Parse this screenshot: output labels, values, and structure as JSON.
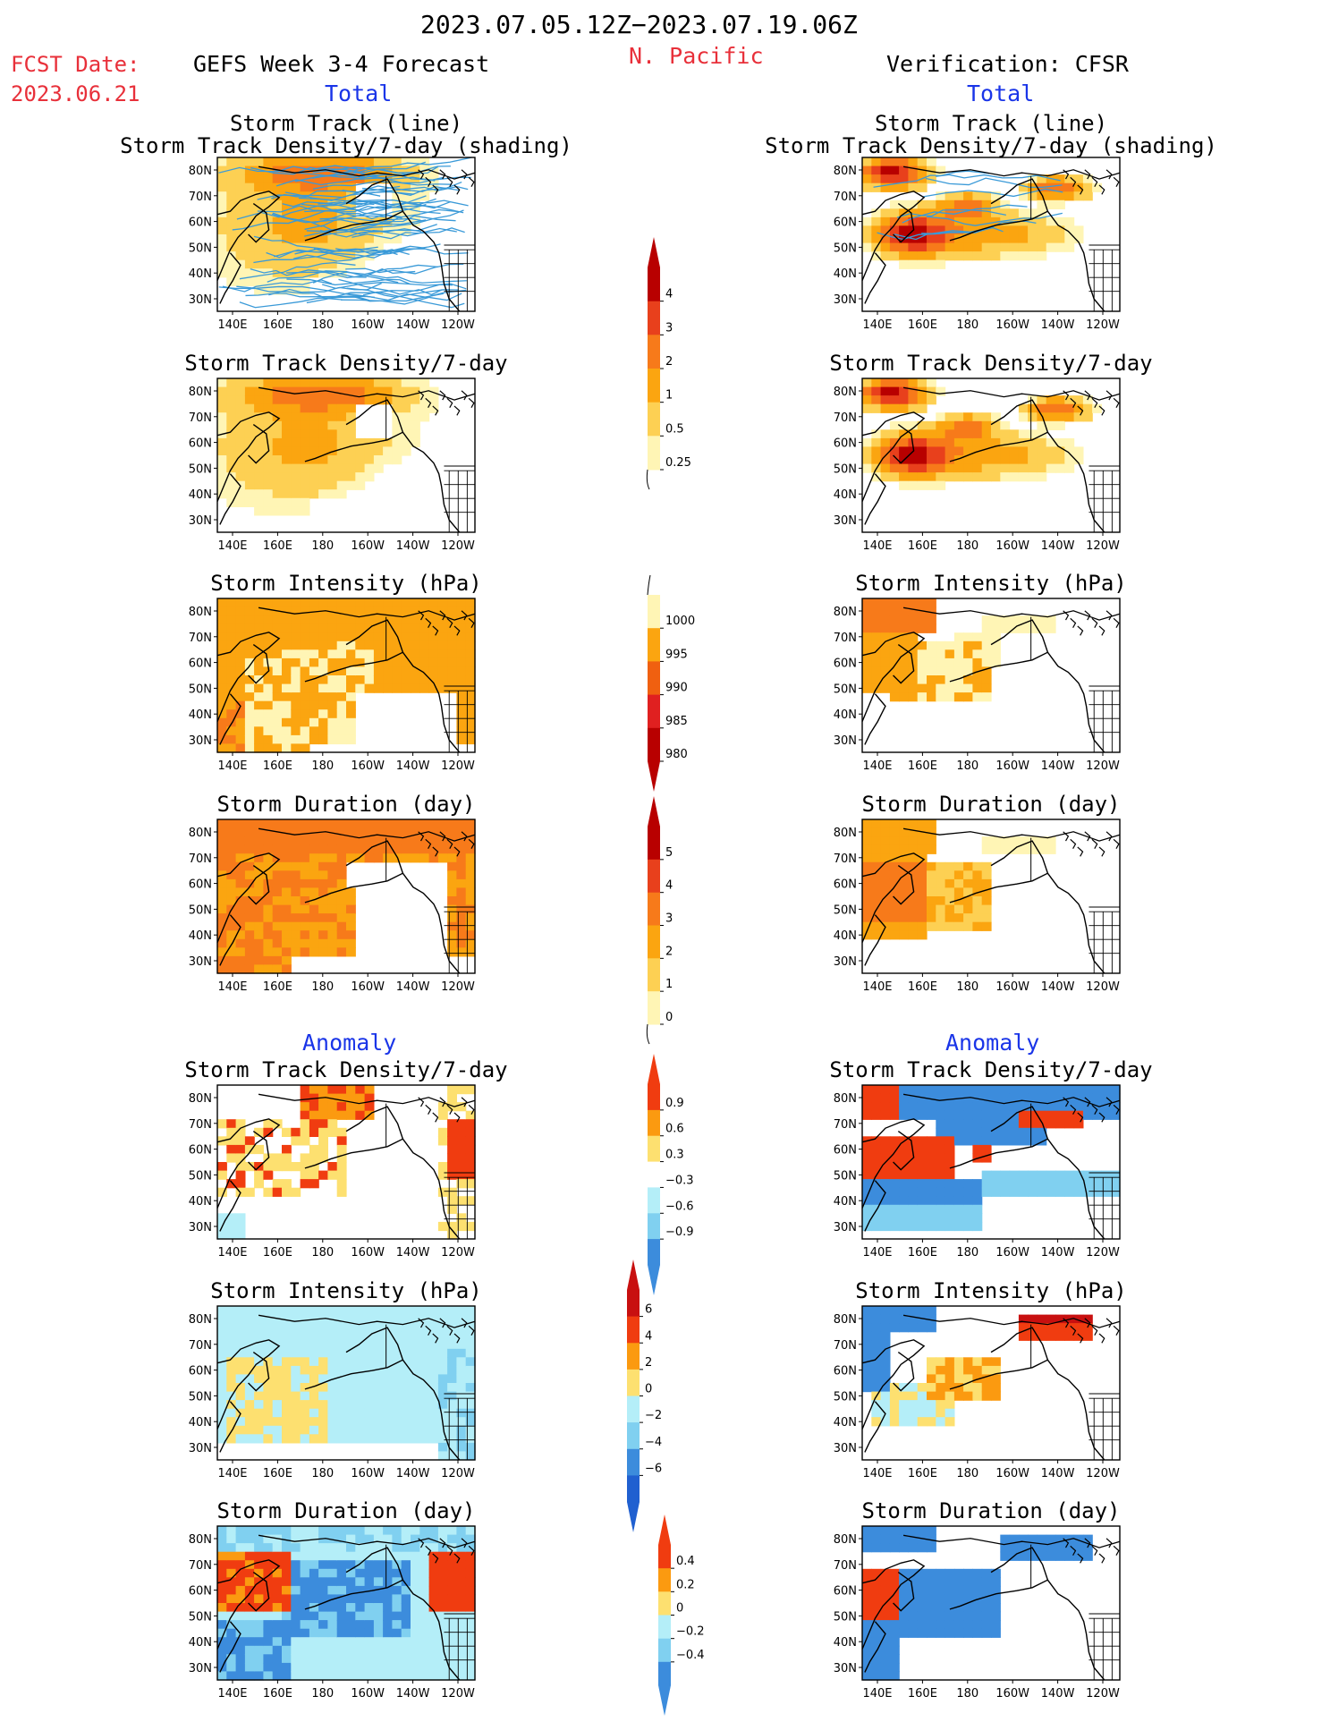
{
  "header": {
    "date_range": "2023.07.05.12Z−2023.07.19.06Z",
    "region": "N. Pacific",
    "fcst_label": "FCST Date:",
    "fcst_date": "2023.06.21",
    "forecast_title": "GEFS Week 3-4 Forecast",
    "verification_title": "Verification: CFSR",
    "total_left": "Total",
    "total_right": "Total",
    "anomaly_left": "Anomaly",
    "anomaly_right": "Anomaly"
  },
  "lat_ticks": [
    "80N",
    "70N",
    "60N",
    "50N",
    "40N",
    "30N"
  ],
  "lon_ticks": [
    "140E",
    "160E",
    "180",
    "160W",
    "140W",
    "120W"
  ],
  "panels": [
    {
      "row": 0,
      "col": 0,
      "title1": "Storm Track (line)",
      "title2": "Storm Track Density/7-day (shading)",
      "field": "std_fc",
      "tracks": true
    },
    {
      "row": 0,
      "col": 1,
      "title1": "Storm Track (line)",
      "title2": "Storm Track Density/7-day (shading)",
      "field": "std_ob",
      "tracks": true
    },
    {
      "row": 1,
      "col": 0,
      "title1": "Storm Track Density/7-day",
      "field": "std_fc"
    },
    {
      "row": 1,
      "col": 1,
      "title1": "Storm Track Density/7-day",
      "field": "std_ob"
    },
    {
      "row": 2,
      "col": 0,
      "title1": "Storm Intensity (hPa)",
      "field": "int_fc"
    },
    {
      "row": 2,
      "col": 1,
      "title1": "Storm Intensity (hPa)",
      "field": "int_ob"
    },
    {
      "row": 3,
      "col": 0,
      "title1": "Storm Duration (day)",
      "field": "dur_fc"
    },
    {
      "row": 3,
      "col": 1,
      "title1": "Storm Duration (day)",
      "field": "dur_ob"
    },
    {
      "row": 4,
      "col": 0,
      "title1": "Storm Track Density/7-day",
      "field": "astd_fc"
    },
    {
      "row": 4,
      "col": 1,
      "title1": "Storm Track Density/7-day",
      "field": "astd_ob"
    },
    {
      "row": 5,
      "col": 0,
      "title1": "Storm Intensity (hPa)",
      "field": "aint_fc"
    },
    {
      "row": 5,
      "col": 1,
      "title1": "Storm Intensity (hPa)",
      "field": "aint_ob"
    },
    {
      "row": 6,
      "col": 0,
      "title1": "Storm Duration (day)",
      "field": "adur_fc"
    },
    {
      "row": 6,
      "col": 1,
      "title1": "Storm Duration (day)",
      "field": "adur_ob"
    }
  ],
  "colorbars": [
    {
      "name": "density",
      "labels": [
        "4",
        "3",
        "2",
        "1",
        "0.5",
        "0.25"
      ],
      "colors": [
        "#b80000",
        "#e8401c",
        "#f77a1a",
        "#fba510",
        "#fdd053",
        "#fff5b5"
      ]
    },
    {
      "name": "intensity",
      "labels": [
        "1000",
        "995",
        "990",
        "985",
        "980"
      ],
      "colors": [
        "#fff5b5",
        "#fba510",
        "#f06010",
        "#e02020",
        "#b80000"
      ],
      "inverted": true
    },
    {
      "name": "duration",
      "labels": [
        "5",
        "4",
        "3",
        "2",
        "1",
        "0"
      ],
      "colors": [
        "#b80000",
        "#e8401c",
        "#f77a1a",
        "#fba510",
        "#fdd053",
        "#fff5b5"
      ]
    },
    {
      "name": "anom-density",
      "labels": [
        "0.9",
        "0.6",
        "0.3",
        "−0.3",
        "−0.6",
        "−0.9"
      ],
      "colors": [
        "#f03c10",
        "#fb9a10",
        "#fde070",
        "#ffffff",
        "#b4eef8",
        "#80d0f0",
        "#3c8cdc"
      ]
    },
    {
      "name": "anom-intensity",
      "labels": [
        "6",
        "4",
        "2",
        "0",
        "−2",
        "−4",
        "−6"
      ],
      "colors": [
        "#c81010",
        "#f03c10",
        "#fb9a10",
        "#fde070",
        "#b4eef8",
        "#80d0f0",
        "#3c8cdc",
        "#2060d0"
      ]
    },
    {
      "name": "anom-duration",
      "labels": [
        "0.4",
        "0.2",
        "0",
        "−0.2",
        "−0.4"
      ],
      "colors": [
        "#f03c10",
        "#fb9a10",
        "#fde070",
        "#b4eef8",
        "#80d0f0",
        "#3c8cdc"
      ]
    }
  ],
  "colors": {
    "title_red": "#e8303a",
    "title_blue": "#1a35e8",
    "track_blue": "#3a9ad8",
    "coast": "#000000"
  }
}
